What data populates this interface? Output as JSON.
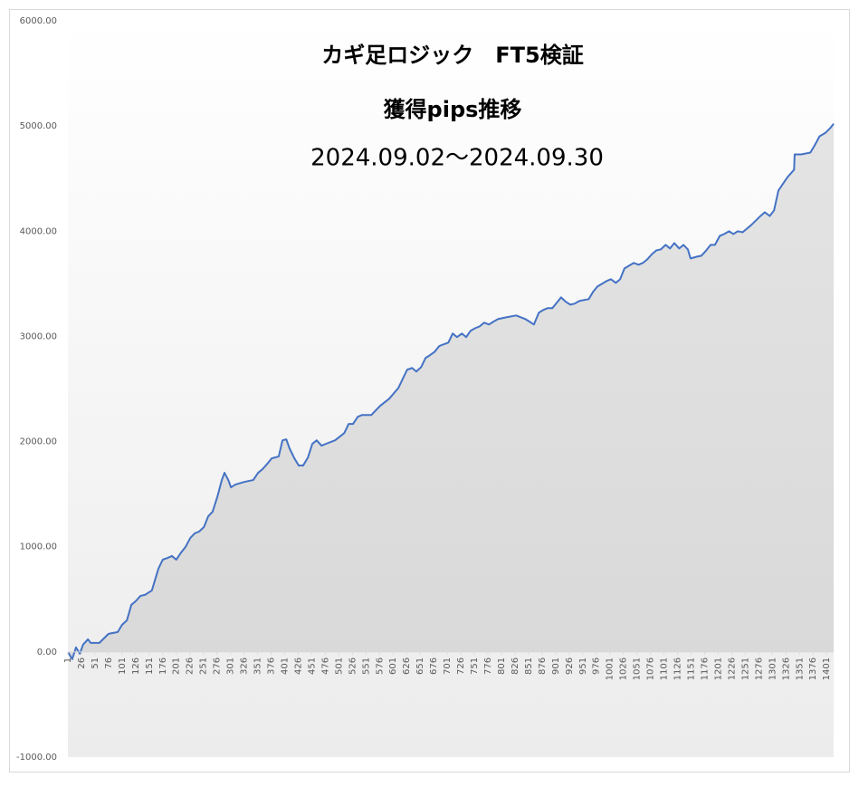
{
  "chart_data": {
    "type": "area",
    "title": "カギ足ロジック　FT5検証",
    "subtitle": "獲得pips推移",
    "period": "2024.09.02～2024.09.30",
    "color": "#4472c4",
    "x": [
      1,
      9,
      16,
      23,
      29,
      38,
      43,
      59,
      76,
      93,
      101,
      110,
      118,
      126,
      135,
      143,
      156,
      168,
      176,
      185,
      193,
      201,
      210,
      218,
      227,
      235,
      243,
      252,
      260,
      268,
      277,
      285,
      290,
      297,
      302,
      310,
      327,
      343,
      352,
      360,
      369,
      377,
      390,
      397,
      404,
      410,
      419,
      427,
      435,
      444,
      452,
      460,
      469,
      477,
      494,
      511,
      519,
      527,
      536,
      544,
      561,
      577,
      594,
      611,
      619,
      627,
      636,
      644,
      653,
      661,
      669,
      678,
      686,
      694,
      703,
      711,
      719,
      728,
      736,
      744,
      753,
      761,
      769,
      778,
      786,
      795,
      811,
      828,
      845,
      853,
      861,
      870,
      878,
      886,
      895,
      911,
      920,
      928,
      936,
      945,
      962,
      970,
      978,
      995,
      1003,
      1012,
      1020,
      1028,
      1045,
      1054,
      1062,
      1070,
      1079,
      1087,
      1095,
      1104,
      1112,
      1120,
      1129,
      1137,
      1145,
      1150,
      1162,
      1170,
      1179,
      1187,
      1195,
      1204,
      1212,
      1221,
      1229,
      1237,
      1246,
      1262,
      1279,
      1287,
      1296,
      1304,
      1312,
      1329,
      1341,
      1342,
      1354,
      1371,
      1379,
      1388,
      1399,
      1409,
      1414
    ],
    "values": [
      0,
      -69,
      43,
      -17,
      69,
      120,
      86,
      86,
      172,
      189,
      258,
      301,
      447,
      482,
      533,
      542,
      585,
      791,
      877,
      894,
      912,
      877,
      946,
      998,
      1084,
      1127,
      1144,
      1187,
      1290,
      1333,
      1479,
      1634,
      1703,
      1634,
      1565,
      1591,
      1617,
      1634,
      1703,
      1737,
      1789,
      1840,
      1858,
      2012,
      2021,
      1935,
      1840,
      1772,
      1772,
      1849,
      1978,
      2012,
      1961,
      1978,
      2012,
      2081,
      2167,
      2167,
      2236,
      2253,
      2253,
      2339,
      2408,
      2511,
      2597,
      2683,
      2700,
      2666,
      2709,
      2795,
      2821,
      2855,
      2907,
      2924,
      2941,
      3027,
      2993,
      3027,
      2993,
      3053,
      3079,
      3096,
      3130,
      3113,
      3139,
      3165,
      3182,
      3199,
      3165,
      3139,
      3113,
      3225,
      3251,
      3268,
      3268,
      3371,
      3328,
      3302,
      3311,
      3337,
      3354,
      3423,
      3474,
      3526,
      3543,
      3509,
      3543,
      3646,
      3698,
      3681,
      3698,
      3732,
      3784,
      3818,
      3827,
      3870,
      3836,
      3887,
      3836,
      3870,
      3827,
      3741,
      3758,
      3767,
      3818,
      3870,
      3870,
      3956,
      3973,
      3999,
      3973,
      3999,
      3990,
      4059,
      4145,
      4180,
      4145,
      4197,
      4386,
      4515,
      4584,
      4730,
      4730,
      4747,
      4816,
      4902,
      4936,
      4988,
      5022
    ],
    "xlim": [
      1,
      1414
    ],
    "xticks": [
      1,
      26,
      51,
      76,
      101,
      126,
      151,
      176,
      201,
      226,
      251,
      276,
      301,
      326,
      351,
      376,
      401,
      426,
      451,
      476,
      501,
      526,
      551,
      576,
      601,
      626,
      651,
      676,
      701,
      726,
      751,
      776,
      801,
      826,
      851,
      876,
      901,
      926,
      951,
      976,
      1001,
      1026,
      1051,
      1076,
      1101,
      1126,
      1151,
      1176,
      1201,
      1226,
      1251,
      1276,
      1301,
      1326,
      1351,
      1376,
      1401
    ],
    "ylim": [
      -1000,
      6000
    ],
    "yticks": [
      {
        "value": -1000,
        "label": "-1000.00"
      },
      {
        "value": 0,
        "label": "0.00"
      },
      {
        "value": 1000,
        "label": "1000.00"
      },
      {
        "value": 2000,
        "label": "2000.00"
      },
      {
        "value": 3000,
        "label": "3000.00"
      },
      {
        "value": 4000,
        "label": "4000.00"
      },
      {
        "value": 5000,
        "label": "5000.00"
      },
      {
        "value": 6000,
        "label": "6000.00"
      }
    ],
    "grid": false
  }
}
